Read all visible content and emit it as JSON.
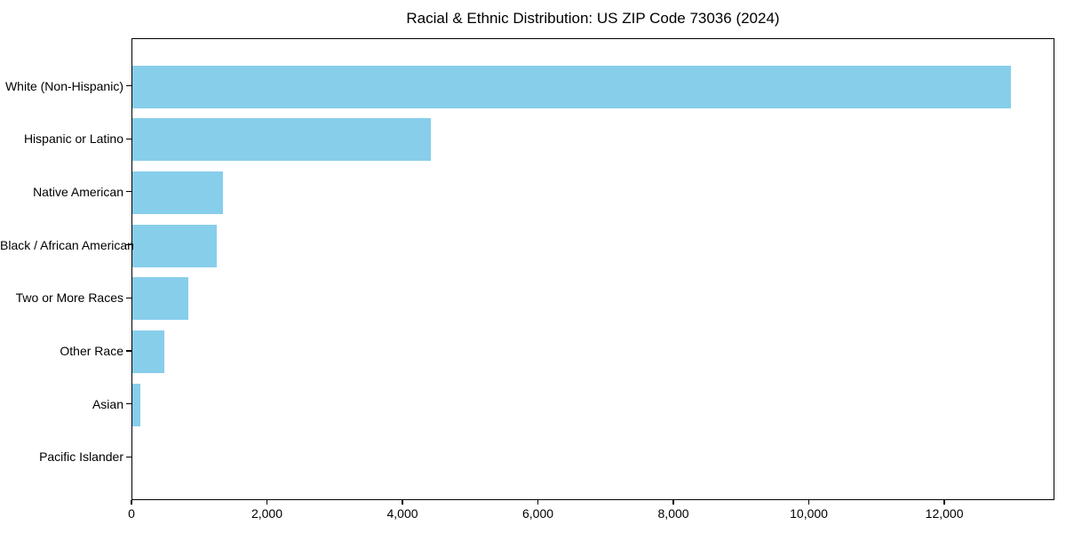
{
  "title": "Racial & Ethnic Distribution: US ZIP Code 73036 (2024)",
  "chart_data": {
    "type": "bar",
    "orientation": "horizontal",
    "title": "Racial & Ethnic Distribution: US ZIP Code 73036 (2024)",
    "categories": [
      "White (Non-Hispanic)",
      "Hispanic or Latino",
      "Native American",
      "Black / African American",
      "Two or More Races",
      "Other Race",
      "Asian",
      "Pacific Islander"
    ],
    "values": [
      12970,
      4400,
      1340,
      1250,
      830,
      470,
      120,
      0
    ],
    "xlabel": "",
    "ylabel": "",
    "xlim": [
      0,
      13625
    ],
    "x_ticks": [
      0,
      2000,
      4000,
      6000,
      8000,
      10000,
      12000
    ],
    "x_tick_labels": [
      "0",
      "2,000",
      "4,000",
      "6,000",
      "8,000",
      "10,000",
      "12,000"
    ],
    "bar_color": "#87CEEB",
    "spine_color": "#000000",
    "grid": false,
    "legend": null
  }
}
